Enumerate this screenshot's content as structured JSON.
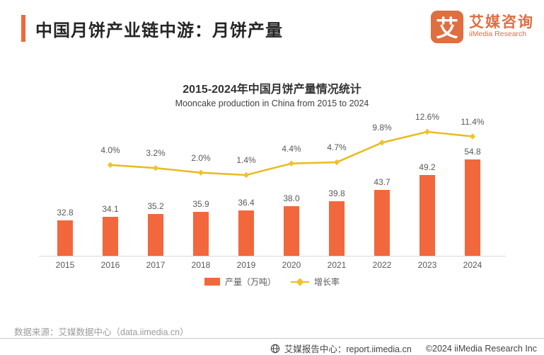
{
  "header": {
    "title": "中国月饼产业链中游：月饼产量",
    "logo": {
      "mark": "艾",
      "name_cn": "艾媒咨询",
      "name_en": "iiMedia Research"
    }
  },
  "chart": {
    "title": "2015-2024年中国月饼产量情况统计",
    "subtitle": "Mooncake production  in China from 2015 to 2024"
  },
  "chart_data": {
    "type": "bar+line",
    "title": "2015-2024年中国月饼产量情况统计",
    "subtitle": "Mooncake production  in China from 2015 to 2024",
    "categories": [
      "2015",
      "2016",
      "2017",
      "2018",
      "2019",
      "2020",
      "2021",
      "2022",
      "2023",
      "2024"
    ],
    "series": [
      {
        "name": "产量（万吨）",
        "type": "bar",
        "color": "#F2683C",
        "values": [
          32.8,
          34.1,
          35.2,
          35.9,
          36.4,
          38.0,
          39.8,
          43.7,
          49.2,
          54.8
        ],
        "labels": [
          "32.8",
          "34.1",
          "35.2",
          "35.9",
          "36.4",
          "38.0",
          "39.8",
          "43.7",
          "49.2",
          "54.8"
        ]
      },
      {
        "name": "增长率",
        "type": "line",
        "color": "#E9BC25",
        "marker_color": "#EFC232",
        "values": [
          null,
          4.0,
          3.2,
          2.0,
          1.4,
          4.4,
          4.7,
          9.8,
          12.6,
          11.4
        ],
        "labels": [
          "",
          "4.0%",
          "3.2%",
          "2.0%",
          "1.4%",
          "4.4%",
          "4.7%",
          "9.8%",
          "12.6%",
          "11.4%"
        ]
      }
    ],
    "legend_position": "bottom",
    "grid": false,
    "y_axis_visible": false,
    "x_axis_color": "#d9d9d9"
  },
  "legend": {
    "bar_label": "产量（万吨）",
    "line_label": "增长率"
  },
  "source_note": "数据来源：艾媒数据中心（data.iimedia.cn）",
  "footer": {
    "report_center": "艾媒报告中心：report.iimedia.cn",
    "copyright": "©2024  iiMedia Research Inc"
  },
  "colors": {
    "accent": "#ED6A3C",
    "bar": "#F2683C",
    "line": "#E9BC25",
    "logo": "#DF6E41"
  }
}
